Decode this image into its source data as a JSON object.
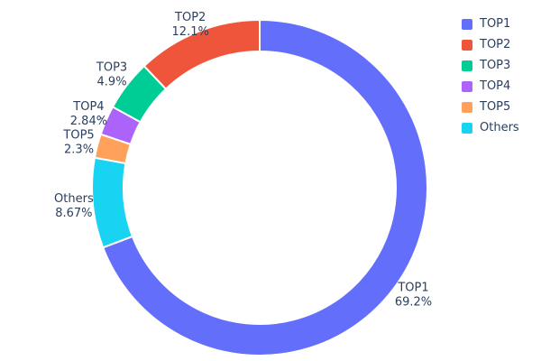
{
  "chart_data": {
    "type": "pie",
    "subtype": "donut",
    "hole_ratio": 0.81,
    "labels": [
      "TOP1",
      "TOP2",
      "TOP3",
      "TOP4",
      "TOP5",
      "Others"
    ],
    "values": [
      69.2,
      12.1,
      4.9,
      2.84,
      2.3,
      8.67
    ],
    "percent_labels": [
      "69.2%",
      "12.1%",
      "4.9%",
      "2.84%",
      "2.3%",
      "8.67%"
    ],
    "colors": [
      "#636efa",
      "#ef553b",
      "#00cc96",
      "#ab63fa",
      "#ffa15a",
      "#19d3f3"
    ],
    "clockwise_order": [
      "TOP1",
      "Others",
      "TOP5",
      "TOP4",
      "TOP3",
      "TOP2"
    ],
    "leader_line_labels": [
      "TOP4"
    ],
    "start_angle_deg": 0,
    "direction": "clockwise",
    "legend_position": "top-right",
    "legend_entries": [
      "TOP1",
      "TOP2",
      "TOP3",
      "TOP4",
      "TOP5",
      "Others"
    ],
    "text_color": "#2a3f5f",
    "background": "#ffffff",
    "title": ""
  }
}
